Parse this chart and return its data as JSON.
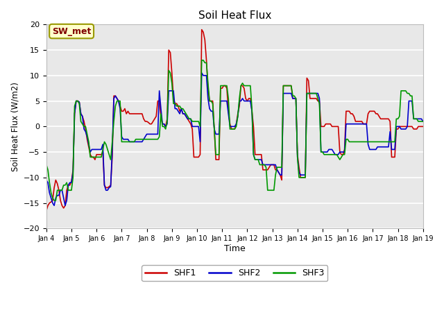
{
  "title": "Soil Heat Flux",
  "ylabel": "Soil Heat Flux (W/m2)",
  "xlabel": "Time",
  "ylim": [
    -20,
    20
  ],
  "legend_label": "SW_met",
  "series_names": [
    "SHF1",
    "SHF2",
    "SHF3"
  ],
  "series_colors": [
    "#cc0000",
    "#0000cc",
    "#009900"
  ],
  "SHF1": [
    -16.5,
    -15.5,
    -15.0,
    -14.8,
    -14.5,
    -12.0,
    -10.5,
    -11.2,
    -12.5,
    -14.5,
    -15.5,
    -16.0,
    -15.5,
    -12.5,
    -11.5,
    -11.5,
    -10.8,
    -8.5,
    2.5,
    5.0,
    5.0,
    4.8,
    2.5,
    2.0,
    1.0,
    -0.5,
    -2.5,
    -4.0,
    -5.5,
    -6.0,
    -6.0,
    -6.5,
    -5.5,
    -5.5,
    -5.5,
    -5.5,
    -5.0,
    -11.5,
    -12.0,
    -12.0,
    -11.8,
    -11.5,
    -6.0,
    6.0,
    6.0,
    5.5,
    5.0,
    4.0,
    3.0,
    3.0,
    3.5,
    2.5,
    3.0,
    2.5,
    2.5,
    2.5,
    2.5,
    2.5,
    2.5,
    2.5,
    2.5,
    2.5,
    1.5,
    1.0,
    1.0,
    0.8,
    0.5,
    0.5,
    1.0,
    1.5,
    2.0,
    5.0,
    5.0,
    2.0,
    0.5,
    0.5,
    0.0,
    1.5,
    15.0,
    14.5,
    10.5,
    5.5,
    4.5,
    4.5,
    4.0,
    3.0,
    3.5,
    2.5,
    2.5,
    2.0,
    1.5,
    1.0,
    0.5,
    -0.5,
    -6.0,
    -6.0,
    -6.0,
    -6.0,
    -5.5,
    19.0,
    18.5,
    17.0,
    13.0,
    7.5,
    5.0,
    5.0,
    5.0,
    -0.5,
    -6.5,
    -6.5,
    -6.5,
    7.5,
    7.5,
    8.0,
    8.0,
    7.5,
    3.0,
    0.5,
    -0.5,
    -0.5,
    -0.5,
    0.5,
    2.5,
    4.0,
    8.0,
    8.0,
    7.5,
    5.5,
    5.0,
    5.5,
    5.5,
    3.0,
    0.0,
    -5.5,
    -5.5,
    -5.5,
    -5.5,
    -5.5,
    -8.5,
    -8.5,
    -8.5,
    -8.5,
    -8.0,
    -7.5,
    -7.5,
    -7.5,
    -8.5,
    -8.5,
    -9.0,
    -9.5,
    -10.5,
    8.0,
    8.0,
    8.0,
    8.0,
    8.0,
    8.0,
    5.5,
    5.5,
    5.5,
    -5.5,
    -8.0,
    -10.0,
    -10.0,
    -10.0,
    -10.0,
    9.5,
    9.0,
    5.5,
    5.5,
    5.5,
    5.5,
    5.5,
    5.0,
    5.0,
    0.0,
    0.0,
    0.0,
    0.5,
    0.5,
    0.5,
    0.5,
    0.0,
    0.0,
    0.0,
    0.0,
    0.0,
    -5.0,
    -5.5,
    -5.5,
    -4.5,
    3.0,
    3.0,
    3.0,
    2.5,
    2.5,
    2.0,
    1.0,
    1.0,
    1.0,
    1.0,
    1.0,
    0.5,
    0.5,
    0.5,
    2.5,
    3.0,
    3.0,
    3.0,
    3.0,
    2.5,
    2.5,
    2.0,
    1.5,
    1.5,
    1.5,
    1.5,
    1.5,
    1.5,
    1.0,
    -6.0,
    -6.0,
    -6.0,
    -0.5,
    -0.5,
    0.0,
    0.0,
    0.0,
    0.0,
    0.0,
    0.0,
    0.0,
    0.0,
    0.0,
    -0.5,
    -0.5,
    -0.5,
    0.0,
    0.0,
    0.0,
    0.0
  ],
  "SHF2": [
    -10.5,
    -11.0,
    -13.0,
    -14.0,
    -15.0,
    -15.5,
    -14.0,
    -13.5,
    -13.5,
    -12.5,
    -12.5,
    -14.0,
    -15.5,
    -14.5,
    -11.5,
    -11.0,
    -11.0,
    -9.0,
    2.5,
    5.0,
    5.0,
    4.8,
    2.5,
    2.0,
    -0.5,
    -1.0,
    -2.0,
    -3.5,
    -5.0,
    -4.5,
    -4.5,
    -4.5,
    -4.5,
    -4.5,
    -4.5,
    -4.5,
    -3.5,
    -11.5,
    -12.5,
    -12.5,
    -12.0,
    -11.8,
    -4.5,
    5.5,
    6.0,
    5.5,
    5.0,
    3.5,
    -2.0,
    -2.5,
    -2.5,
    -2.5,
    -2.5,
    -3.0,
    -3.0,
    -3.0,
    -3.0,
    -3.0,
    -3.0,
    -3.0,
    -3.0,
    -3.0,
    -2.5,
    -2.0,
    -1.5,
    -1.5,
    -1.5,
    -1.5,
    -1.5,
    -1.5,
    -1.5,
    -1.5,
    7.0,
    3.5,
    0.5,
    0.5,
    0.0,
    0.5,
    7.0,
    7.0,
    7.0,
    7.0,
    3.5,
    3.5,
    3.0,
    2.5,
    3.5,
    2.5,
    2.5,
    2.0,
    1.5,
    1.5,
    1.5,
    0.0,
    0.0,
    0.0,
    0.0,
    0.0,
    -3.0,
    10.5,
    10.0,
    10.0,
    10.0,
    5.5,
    3.5,
    3.0,
    3.0,
    -0.5,
    -1.5,
    -1.5,
    -1.5,
    5.0,
    5.0,
    5.0,
    5.0,
    5.0,
    2.5,
    0.0,
    0.0,
    0.0,
    0.0,
    0.5,
    2.0,
    5.0,
    5.0,
    5.5,
    5.0,
    5.0,
    5.0,
    5.0,
    5.0,
    3.0,
    -5.5,
    -6.5,
    -6.5,
    -6.5,
    -6.5,
    -6.5,
    -7.5,
    -7.5,
    -7.5,
    -7.5,
    -7.5,
    -7.5,
    -7.5,
    -7.5,
    -7.5,
    -8.5,
    -9.0,
    -9.5,
    -9.5,
    6.5,
    6.5,
    6.5,
    6.5,
    6.5,
    6.5,
    5.5,
    5.5,
    5.5,
    -6.0,
    -9.0,
    -9.5,
    -9.5,
    -9.5,
    -9.5,
    6.5,
    6.5,
    6.5,
    6.5,
    6.5,
    6.5,
    6.5,
    6.5,
    5.5,
    -5.0,
    -5.0,
    -5.0,
    -5.0,
    -5.0,
    -4.5,
    -4.5,
    -4.5,
    -5.0,
    -5.5,
    -5.5,
    -5.5,
    -5.0,
    -5.0,
    -5.0,
    -5.0,
    0.5,
    0.5,
    0.5,
    0.5,
    0.5,
    0.5,
    0.5,
    0.5,
    0.5,
    0.5,
    0.5,
    0.5,
    0.5,
    0.5,
    -3.5,
    -4.5,
    -4.5,
    -4.5,
    -4.5,
    -4.5,
    -4.0,
    -4.0,
    -4.0,
    -4.0,
    -4.0,
    -4.0,
    -4.0,
    -4.0,
    -1.0,
    -4.5,
    -4.5,
    -4.5,
    0.0,
    0.0,
    0.0,
    -0.5,
    -0.5,
    -0.5,
    -0.5,
    0.0,
    5.0,
    5.0,
    5.0,
    1.5,
    1.5,
    1.5,
    1.5,
    1.5,
    1.5,
    1.0
  ],
  "SHF3": [
    -7.5,
    -8.5,
    -11.0,
    -13.0,
    -14.0,
    -14.5,
    -14.5,
    -12.5,
    -12.5,
    -12.5,
    -12.5,
    -11.5,
    -11.5,
    -11.0,
    -12.5,
    -12.5,
    -12.5,
    -10.0,
    4.0,
    5.0,
    5.0,
    4.5,
    1.0,
    0.5,
    0.0,
    0.0,
    -1.5,
    -3.0,
    -6.0,
    -6.0,
    -6.0,
    -6.0,
    -6.0,
    -6.0,
    -6.0,
    -6.0,
    -4.5,
    -3.0,
    -3.5,
    -4.5,
    -5.5,
    -6.5,
    -3.0,
    1.0,
    4.0,
    5.0,
    5.0,
    5.0,
    -3.0,
    -3.0,
    -3.0,
    -3.0,
    -3.0,
    -3.0,
    -3.0,
    -3.0,
    -3.0,
    -2.5,
    -2.5,
    -2.5,
    -2.5,
    -2.5,
    -2.5,
    -2.5,
    -2.5,
    -2.5,
    -2.5,
    -2.5,
    -2.5,
    -2.5,
    -2.5,
    -2.5,
    -2.0,
    2.5,
    0.0,
    0.0,
    -0.5,
    1.0,
    11.0,
    10.5,
    8.5,
    4.5,
    4.5,
    4.0,
    4.0,
    4.0,
    3.5,
    3.5,
    3.0,
    2.5,
    2.0,
    1.5,
    1.5,
    1.0,
    1.0,
    1.0,
    1.0,
    1.0,
    0.0,
    13.0,
    13.0,
    12.5,
    12.5,
    8.5,
    5.0,
    5.0,
    4.5,
    -0.5,
    -5.5,
    -5.5,
    -5.5,
    8.0,
    8.0,
    8.0,
    8.0,
    8.0,
    5.5,
    -0.5,
    -0.5,
    -0.5,
    -0.5,
    0.0,
    2.0,
    5.5,
    8.0,
    8.5,
    8.0,
    8.0,
    8.0,
    8.0,
    8.0,
    3.5,
    -5.5,
    -6.5,
    -6.5,
    -6.5,
    -7.5,
    -7.5,
    -7.5,
    -7.5,
    -8.0,
    -12.5,
    -12.5,
    -12.5,
    -12.5,
    -12.5,
    -9.5,
    -8.0,
    -8.0,
    -8.0,
    -8.0,
    8.0,
    8.0,
    8.0,
    8.0,
    8.0,
    8.0,
    6.0,
    6.0,
    5.5,
    -6.0,
    -10.0,
    -10.0,
    -10.0,
    -10.0,
    -10.0,
    6.5,
    6.5,
    6.5,
    6.5,
    6.5,
    6.5,
    6.5,
    5.5,
    4.5,
    -5.0,
    -5.0,
    -5.5,
    -5.5,
    -5.5,
    -5.5,
    -5.5,
    -5.5,
    -5.5,
    -5.5,
    -5.5,
    -6.0,
    -6.5,
    -6.0,
    -5.5,
    -5.5,
    -2.5,
    -2.5,
    -3.0,
    -3.0,
    -3.0,
    -3.0,
    -3.0,
    -3.0,
    -3.0,
    -3.0,
    -3.0,
    -3.0,
    -3.0,
    -3.0,
    -3.0,
    -3.0,
    -3.0,
    -3.0,
    -3.0,
    -3.0,
    -3.0,
    -3.0,
    -3.0,
    -3.0,
    -3.0,
    -3.0,
    -3.0,
    -3.0,
    -3.0,
    -3.0,
    -3.0,
    -3.0,
    1.5,
    1.5,
    2.0,
    7.0,
    7.0,
    7.0,
    7.0,
    6.5,
    6.5,
    6.0,
    6.0,
    1.5,
    1.5,
    1.5,
    1.0,
    1.0,
    1.0,
    1.0
  ],
  "n_days": 15,
  "xtick_labels": [
    "Jan 4",
    "Jan 5",
    "Jan 6",
    "Jan 7",
    "Jan 8",
    "Jan 9",
    "Jan 10",
    "Jan 11",
    "Jan 12",
    "Jan 13",
    "Jan 14",
    "Jan 15",
    "Jan 16",
    "Jan 17",
    "Jan 18",
    "Jan 19"
  ],
  "bg_color": "#e8e8e8",
  "grid_color": "white",
  "annotation_box_color": "#ffffcc",
  "annotation_text_color": "#800000",
  "annotation_border_color": "#999900"
}
